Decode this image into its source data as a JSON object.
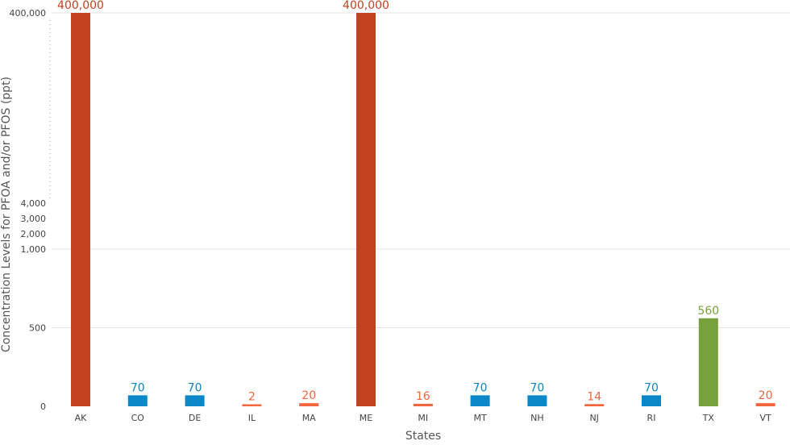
{
  "chart_data": {
    "type": "bar",
    "title": "",
    "xlabel": "States",
    "ylabel": "Concentration Levels for PFOA and/or PFOS (ppt)",
    "categories": [
      "AK",
      "CO",
      "DE",
      "IL",
      "MA",
      "ME",
      "MI",
      "MT",
      "NH",
      "NJ",
      "RI",
      "TX",
      "VT"
    ],
    "values": [
      400000,
      70,
      70,
      2,
      20,
      400000,
      16,
      70,
      70,
      14,
      70,
      560,
      20
    ],
    "value_labels": [
      "400,000",
      "70",
      "70",
      "2",
      "20",
      "400,000",
      "16",
      "70",
      "70",
      "14",
      "70",
      "560",
      "20"
    ],
    "bar_colors": [
      "#c4411f",
      "#0a87c6",
      "#0a87c6",
      "#f26540",
      "#f26540",
      "#c4411f",
      "#f26540",
      "#0a87c6",
      "#0a87c6",
      "#f26540",
      "#0a87c6",
      "#77a23b",
      "#f26540"
    ],
    "y_ticks": [
      0,
      500,
      1000,
      2000,
      3000,
      4000,
      400000
    ],
    "y_tick_labels": [
      "0",
      "500",
      "1,000",
      "2,000",
      "3,000",
      "4,000",
      "400,000"
    ],
    "gridlines_at": [
      500,
      1000,
      400000
    ],
    "y_axis_break": "dotted between 4,000 and 400,000",
    "ylim": [
      0,
      400000
    ],
    "grid": true,
    "legend": "none"
  }
}
